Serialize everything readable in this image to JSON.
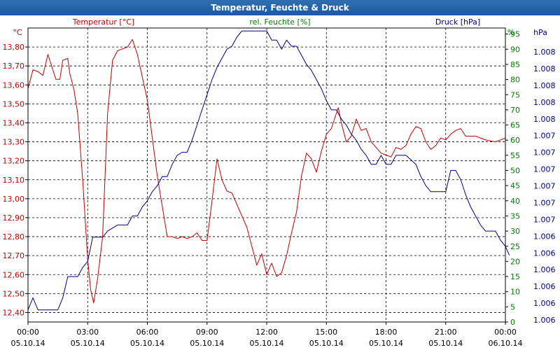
{
  "window": {
    "title": "Temperatur, Feuchte & Druck"
  },
  "chart_data": {
    "type": "line",
    "title": "Temperatur, Feuchte & Druck",
    "xlabel": "",
    "x_ticks": [
      {
        "time": "00:00",
        "date": "05.10.14"
      },
      {
        "time": "03:00",
        "date": "05.10.14"
      },
      {
        "time": "06:00",
        "date": "05.10.14"
      },
      {
        "time": "09:00",
        "date": "05.10.14"
      },
      {
        "time": "12:00",
        "date": "05.10.14"
      },
      {
        "time": "15:00",
        "date": "05.10.14"
      },
      {
        "time": "18:00",
        "date": "05.10.14"
      },
      {
        "time": "21:00",
        "date": "05.10.14"
      },
      {
        "time": "00:00",
        "date": "06.10.14"
      }
    ],
    "x_range_hours": [
      0,
      24
    ],
    "axes": {
      "temperature": {
        "unit": "°C",
        "label": "Temperatur [°C]",
        "range": [
          12.35,
          13.9
        ],
        "color": "#c00000",
        "ticks": [
          "12,40",
          "12,50",
          "12,60",
          "12,70",
          "12,80",
          "12,90",
          "13,00",
          "13,10",
          "13,20",
          "13,30",
          "13,40",
          "13,50",
          "13,60",
          "13,70",
          "13,80"
        ]
      },
      "humidity": {
        "unit": "%",
        "label": "rel. Feuchte [%]",
        "range": [
          0,
          97
        ],
        "color": "#008000",
        "ticks": [
          "0",
          "5",
          "10",
          "15",
          "20",
          "25",
          "30",
          "35",
          "40",
          "45",
          "50",
          "55",
          "60",
          "65",
          "70",
          "75",
          "80",
          "85",
          "90",
          "95"
        ]
      },
      "pressure": {
        "unit": "hPa",
        "label": "Druck [hPa]",
        "color": "#000080",
        "ticks": [
          "1.006",
          "1.006",
          "1.006",
          "1.006",
          "1.006",
          "1.006",
          "1.007",
          "1.007",
          "1.007",
          "1.007",
          "1.007",
          "1.007",
          "1.008",
          "1.008",
          "1.008",
          "1.008",
          "1.008"
        ]
      }
    },
    "series": [
      {
        "name": "Temperatur [°C]",
        "color": "#c00000",
        "axis": "temperature",
        "points": [
          [
            0,
            13.58
          ],
          [
            0.25,
            13.68
          ],
          [
            0.5,
            13.67
          ],
          [
            0.75,
            13.65
          ],
          [
            1.0,
            13.76
          ],
          [
            1.25,
            13.68
          ],
          [
            1.4,
            13.63
          ],
          [
            1.6,
            13.63
          ],
          [
            1.75,
            13.73
          ],
          [
            2.0,
            13.74
          ],
          [
            2.1,
            13.66
          ],
          [
            2.3,
            13.58
          ],
          [
            2.5,
            13.45
          ],
          [
            2.75,
            13.1
          ],
          [
            3.0,
            12.68
          ],
          [
            3.15,
            12.52
          ],
          [
            3.3,
            12.45
          ],
          [
            3.5,
            12.58
          ],
          [
            3.75,
            12.8
          ],
          [
            4.0,
            13.45
          ],
          [
            4.25,
            13.73
          ],
          [
            4.5,
            13.78
          ],
          [
            4.75,
            13.79
          ],
          [
            5.0,
            13.8
          ],
          [
            5.25,
            13.84
          ],
          [
            5.5,
            13.76
          ],
          [
            5.75,
            13.64
          ],
          [
            6.0,
            13.52
          ],
          [
            6.25,
            13.32
          ],
          [
            6.5,
            13.12
          ],
          [
            6.75,
            12.96
          ],
          [
            7.0,
            12.8
          ],
          [
            7.25,
            12.8
          ],
          [
            7.5,
            12.79
          ],
          [
            7.75,
            12.8
          ],
          [
            8.0,
            12.79
          ],
          [
            8.25,
            12.8
          ],
          [
            8.5,
            12.82
          ],
          [
            8.75,
            12.78
          ],
          [
            9.0,
            12.78
          ],
          [
            9.25,
            12.99
          ],
          [
            9.5,
            13.21
          ],
          [
            9.75,
            13.1
          ],
          [
            10.0,
            13.04
          ],
          [
            10.25,
            13.03
          ],
          [
            10.5,
            12.97
          ],
          [
            10.75,
            12.91
          ],
          [
            11.0,
            12.85
          ],
          [
            11.25,
            12.75
          ],
          [
            11.5,
            12.65
          ],
          [
            11.75,
            12.71
          ],
          [
            12.0,
            12.6
          ],
          [
            12.25,
            12.66
          ],
          [
            12.5,
            12.59
          ],
          [
            12.75,
            12.61
          ],
          [
            13.0,
            12.7
          ],
          [
            13.25,
            12.82
          ],
          [
            13.5,
            12.93
          ],
          [
            13.75,
            13.12
          ],
          [
            14.0,
            13.24
          ],
          [
            14.25,
            13.21
          ],
          [
            14.5,
            13.14
          ],
          [
            14.75,
            13.25
          ],
          [
            15.0,
            13.34
          ],
          [
            15.25,
            13.37
          ],
          [
            15.5,
            13.45
          ],
          [
            15.6,
            13.48
          ],
          [
            15.75,
            13.4
          ],
          [
            16.0,
            13.3
          ],
          [
            16.25,
            13.33
          ],
          [
            16.5,
            13.42
          ],
          [
            16.75,
            13.36
          ],
          [
            17.0,
            13.37
          ],
          [
            17.25,
            13.3
          ],
          [
            17.5,
            13.27
          ],
          [
            17.75,
            13.24
          ],
          [
            18.0,
            13.23
          ],
          [
            18.25,
            13.22
          ],
          [
            18.5,
            13.27
          ],
          [
            18.75,
            13.26
          ],
          [
            19.0,
            13.28
          ],
          [
            19.25,
            13.34
          ],
          [
            19.5,
            13.38
          ],
          [
            19.75,
            13.37
          ],
          [
            20.0,
            13.3
          ],
          [
            20.25,
            13.26
          ],
          [
            20.5,
            13.28
          ],
          [
            20.75,
            13.32
          ],
          [
            21.0,
            13.31
          ],
          [
            21.25,
            13.34
          ],
          [
            21.5,
            13.36
          ],
          [
            21.75,
            13.37
          ],
          [
            22.0,
            13.33
          ],
          [
            22.5,
            13.33
          ],
          [
            23.0,
            13.31
          ],
          [
            23.5,
            13.3
          ],
          [
            24.0,
            13.32
          ]
        ]
      },
      {
        "name": "rel. Feuchte [%]",
        "color": "#000080",
        "axis": "humidity",
        "points": [
          [
            0,
            4
          ],
          [
            0.25,
            8
          ],
          [
            0.5,
            4
          ],
          [
            1.0,
            4
          ],
          [
            1.5,
            4
          ],
          [
            1.75,
            8
          ],
          [
            2.0,
            15
          ],
          [
            2.5,
            15
          ],
          [
            2.75,
            18
          ],
          [
            3.0,
            20
          ],
          [
            3.25,
            28
          ],
          [
            3.5,
            28
          ],
          [
            3.75,
            28
          ],
          [
            4.0,
            30
          ],
          [
            4.5,
            32
          ],
          [
            5.0,
            32
          ],
          [
            5.25,
            35
          ],
          [
            5.5,
            35
          ],
          [
            5.75,
            38
          ],
          [
            6.0,
            40
          ],
          [
            6.25,
            43
          ],
          [
            6.5,
            45
          ],
          [
            6.75,
            48
          ],
          [
            7.0,
            48
          ],
          [
            7.25,
            52
          ],
          [
            7.5,
            55
          ],
          [
            7.75,
            56
          ],
          [
            8.0,
            56
          ],
          [
            8.25,
            60
          ],
          [
            8.5,
            65
          ],
          [
            8.75,
            70
          ],
          [
            9.0,
            75
          ],
          [
            9.25,
            80
          ],
          [
            9.5,
            84
          ],
          [
            9.75,
            87
          ],
          [
            10.0,
            90
          ],
          [
            10.25,
            91
          ],
          [
            10.5,
            94
          ],
          [
            10.75,
            96
          ],
          [
            11.0,
            96
          ],
          [
            12.0,
            96
          ],
          [
            12.25,
            93
          ],
          [
            12.5,
            93
          ],
          [
            12.75,
            90
          ],
          [
            13.0,
            93
          ],
          [
            13.25,
            91
          ],
          [
            13.5,
            91
          ],
          [
            13.75,
            88
          ],
          [
            14.0,
            85
          ],
          [
            14.25,
            83
          ],
          [
            14.5,
            80
          ],
          [
            14.75,
            77
          ],
          [
            15.0,
            73
          ],
          [
            15.25,
            70
          ],
          [
            15.5,
            70
          ],
          [
            15.75,
            67
          ],
          [
            16.0,
            65
          ],
          [
            16.25,
            62
          ],
          [
            16.5,
            60
          ],
          [
            16.75,
            57
          ],
          [
            17.0,
            55
          ],
          [
            17.25,
            52
          ],
          [
            17.5,
            52
          ],
          [
            17.75,
            55
          ],
          [
            18.0,
            52
          ],
          [
            18.25,
            52
          ],
          [
            18.5,
            55
          ],
          [
            19.0,
            55
          ],
          [
            19.5,
            52
          ],
          [
            19.75,
            48
          ],
          [
            20.0,
            45
          ],
          [
            20.25,
            43
          ],
          [
            20.5,
            43
          ],
          [
            21.0,
            43
          ],
          [
            21.25,
            50
          ],
          [
            21.5,
            50
          ],
          [
            21.75,
            47
          ],
          [
            22.0,
            42
          ],
          [
            22.25,
            38
          ],
          [
            22.5,
            35
          ],
          [
            22.75,
            32
          ],
          [
            23.0,
            30
          ],
          [
            23.5,
            30
          ],
          [
            23.75,
            27
          ],
          [
            24.0,
            25
          ],
          [
            24.2,
            22
          ]
        ]
      }
    ]
  }
}
